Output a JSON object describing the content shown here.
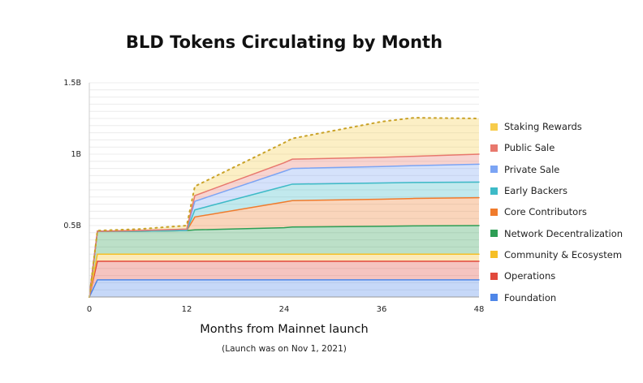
{
  "chart_data": {
    "type": "area",
    "stacked": true,
    "title": "BLD Tokens Circulating by Month",
    "xlabel": "Months from Mainnet launch",
    "subtitle": "(Launch was on Nov 1, 2021)",
    "ylabel": "",
    "xlim": [
      0,
      48
    ],
    "ylim": [
      0,
      1500000000
    ],
    "x_ticks": [
      "0",
      "12",
      "24",
      "36",
      "48"
    ],
    "y_ticks": [
      "0.5B",
      "1B",
      "1.5B"
    ],
    "grid": "horizontal",
    "legend_position": "right",
    "x": [
      0,
      1,
      6,
      12,
      13,
      24,
      25,
      36,
      40,
      48
    ],
    "series": [
      {
        "name": "Foundation",
        "color": "#4e86e8",
        "values": [
          0,
          120000000,
          120000000,
          120000000,
          120000000,
          120000000,
          120000000,
          120000000,
          120000000,
          120000000
        ]
      },
      {
        "name": "Operations",
        "color": "#e1493c",
        "values": [
          0,
          130000000,
          130000000,
          130000000,
          130000000,
          130000000,
          130000000,
          130000000,
          130000000,
          130000000
        ]
      },
      {
        "name": "Community & Ecosystem",
        "color": "#f6bf26",
        "values": [
          0,
          50000000,
          50000000,
          50000000,
          50000000,
          50000000,
          50000000,
          50000000,
          50000000,
          50000000
        ]
      },
      {
        "name": "Network Decentralization",
        "color": "#2e9e55",
        "values": [
          0,
          160000000,
          160000000,
          165000000,
          170000000,
          185000000,
          190000000,
          195000000,
          198000000,
          200000000
        ]
      },
      {
        "name": "Core Contributors",
        "color": "#f07b2c",
        "values": [
          0,
          0,
          0,
          0,
          90000000,
          180000000,
          185000000,
          190000000,
          192000000,
          195000000
        ]
      },
      {
        "name": "Early Backers",
        "color": "#3dbac7",
        "values": [
          0,
          0,
          0,
          0,
          50000000,
          110000000,
          115000000,
          113000000,
          112000000,
          110000000
        ]
      },
      {
        "name": "Private Sale",
        "color": "#7ba4f4",
        "values": [
          0,
          0,
          5000000,
          10000000,
          60000000,
          105000000,
          110000000,
          115000000,
          118000000,
          125000000
        ]
      },
      {
        "name": "Public Sale",
        "color": "#e8786d",
        "values": [
          0,
          0,
          0,
          0,
          40000000,
          60000000,
          65000000,
          65000000,
          65000000,
          70000000
        ]
      },
      {
        "name": "Staking Rewards",
        "color": "#f7cc4b",
        "values": [
          0,
          5000000,
          10000000,
          25000000,
          65000000,
          140000000,
          145000000,
          250000000,
          270000000,
          250000000
        ]
      }
    ]
  }
}
